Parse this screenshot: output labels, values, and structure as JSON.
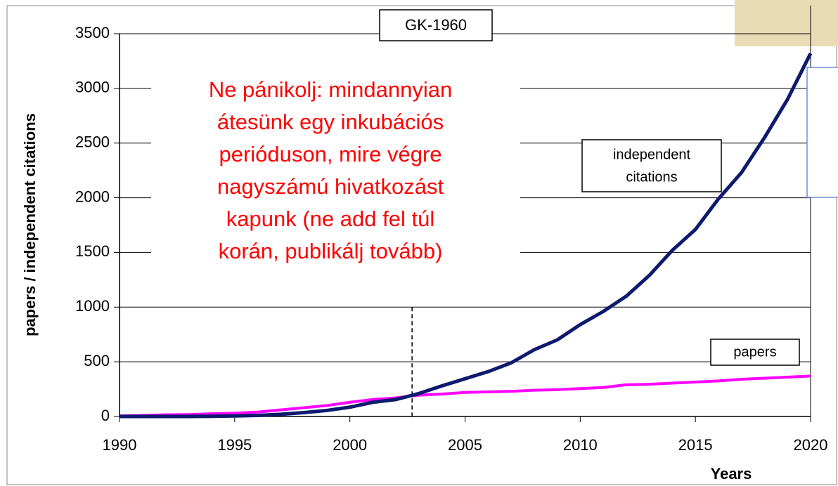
{
  "chart_data": {
    "type": "line",
    "xlabel": "Years",
    "ylabel": "papers / independent citations",
    "x": [
      1990,
      1991,
      1992,
      1993,
      1994,
      1995,
      1996,
      1997,
      1998,
      1999,
      2000,
      2001,
      2002,
      2003,
      2004,
      2005,
      2006,
      2007,
      2008,
      2009,
      2010,
      2011,
      2012,
      2013,
      2014,
      2015,
      2016,
      2017,
      2018,
      2019,
      2020
    ],
    "series": [
      {
        "name": "independent citations",
        "color": "#0d1a6e",
        "values": [
          0,
          0,
          0,
          0,
          2,
          5,
          10,
          20,
          35,
          55,
          85,
          130,
          155,
          210,
          280,
          345,
          410,
          490,
          610,
          700,
          840,
          960,
          1100,
          1290,
          1520,
          1710,
          1990,
          2230,
          2550,
          2900,
          3320
        ]
      },
      {
        "name": "papers",
        "color": "#ff00ff",
        "values": [
          5,
          10,
          15,
          18,
          25,
          30,
          40,
          60,
          80,
          100,
          130,
          155,
          170,
          195,
          205,
          220,
          225,
          230,
          240,
          245,
          255,
          265,
          290,
          295,
          305,
          315,
          325,
          340,
          350,
          360,
          370
        ]
      }
    ],
    "xlim": [
      1990,
      2020
    ],
    "xticks": [
      1990,
      1995,
      2000,
      2005,
      2010,
      2015,
      2020
    ],
    "ylim": [
      0,
      3500
    ],
    "yticks": [
      0,
      500,
      1000,
      1500,
      2000,
      2500,
      3000,
      3500
    ],
    "grid": true,
    "annotations": {
      "box": "GK-1960",
      "note": [
        "Ne pánikolj: mindannyian",
        "átesünk egy inkubációs",
        "perióduson, mire végre",
        "nagyszámú hivatkozást",
        "kapunk (ne add fel túl",
        "korán, publikálj tovább)"
      ],
      "label_citations": [
        "independent",
        "citations"
      ],
      "label_papers": "papers",
      "vline_x": 2002.7
    }
  }
}
